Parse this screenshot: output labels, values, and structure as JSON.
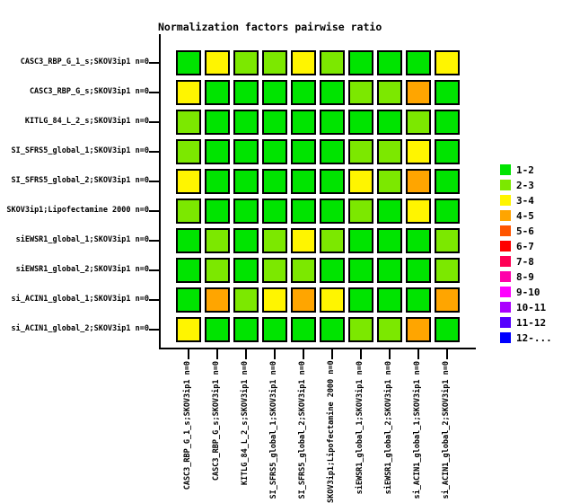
{
  "title": "Normalization factors pairwise ratio",
  "chart_data": {
    "type": "heatmap",
    "title": "Normalization factors pairwise ratio",
    "legend_position": "right",
    "grid": false,
    "row_labels": [
      "CASC3_RBP_G_1_s;SKOV3ip1 n=0",
      "CASC3_RBP_G_s;SKOV3ip1 n=0",
      "KITLG_84_L_2_s;SKOV3ip1 n=0",
      "SI_SFRS5_global_1;SKOV3ip1 n=0",
      "SI_SFRS5_global_2;SKOV3ip1 n=0",
      "SKOV3ip1;Lipofectamine 2000 n=0",
      "siEWSR1_global_1;SKOV3ip1 n=0",
      "siEWSR1_global_2;SKOV3ip1 n=0",
      "si_ACIN1_global_1;SKOV3ip1 n=0",
      "si_ACIN1_global_2;SKOV3ip1 n=0"
    ],
    "col_labels": [
      "CASC3_RBP_G_1_s;SKOV3ip1 n=0",
      "CASC3_RBP_G_s;SKOV3ip1 n=0",
      "KITLG_84_L_2_s;SKOV3ip1 n=0",
      "SI_SFRS5_global_1;SKOV3ip1 n=0",
      "SI_SFRS5_global_2;SKOV3ip1 n=0",
      "SKOV3ip1;Lipofectamine 2000 n=0",
      "siEWSR1_global_1;SKOV3ip1 n=0",
      "siEWSR1_global_2;SKOV3ip1 n=0",
      "si_ACIN1_global_1;SKOV3ip1 n=0",
      "si_ACIN1_global_2;SKOV3ip1 n=0"
    ],
    "cell_bins": [
      [
        "1-2",
        "3-4",
        "2-3",
        "2-3",
        "3-4",
        "2-3",
        "1-2",
        "1-2",
        "1-2",
        "3-4"
      ],
      [
        "3-4",
        "1-2",
        "1-2",
        "1-2",
        "1-2",
        "1-2",
        "2-3",
        "2-3",
        "4-5",
        "1-2"
      ],
      [
        "2-3",
        "1-2",
        "1-2",
        "1-2",
        "1-2",
        "1-2",
        "1-2",
        "1-2",
        "2-3",
        "1-2"
      ],
      [
        "2-3",
        "1-2",
        "1-2",
        "1-2",
        "1-2",
        "1-2",
        "2-3",
        "2-3",
        "3-4",
        "1-2"
      ],
      [
        "3-4",
        "1-2",
        "1-2",
        "1-2",
        "1-2",
        "1-2",
        "3-4",
        "2-3",
        "4-5",
        "1-2"
      ],
      [
        "2-3",
        "1-2",
        "1-2",
        "1-2",
        "1-2",
        "1-2",
        "2-3",
        "1-2",
        "3-4",
        "1-2"
      ],
      [
        "1-2",
        "2-3",
        "1-2",
        "2-3",
        "3-4",
        "2-3",
        "1-2",
        "1-2",
        "1-2",
        "2-3"
      ],
      [
        "1-2",
        "2-3",
        "1-2",
        "2-3",
        "2-3",
        "1-2",
        "1-2",
        "1-2",
        "1-2",
        "2-3"
      ],
      [
        "1-2",
        "4-5",
        "2-3",
        "3-4",
        "4-5",
        "3-4",
        "1-2",
        "1-2",
        "1-2",
        "4-5"
      ],
      [
        "3-4",
        "1-2",
        "1-2",
        "1-2",
        "1-2",
        "1-2",
        "2-3",
        "2-3",
        "4-5",
        "1-2"
      ]
    ],
    "legend": [
      {
        "label": "1-2",
        "color": "#00E400"
      },
      {
        "label": "2-3",
        "color": "#7CE800"
      },
      {
        "label": "3-4",
        "color": "#FFF500"
      },
      {
        "label": "4-5",
        "color": "#FFA500"
      },
      {
        "label": "5-6",
        "color": "#FF5500"
      },
      {
        "label": "6-7",
        "color": "#FF0000"
      },
      {
        "label": "7-8",
        "color": "#FF0055"
      },
      {
        "label": "8-9",
        "color": "#FF00AA"
      },
      {
        "label": "9-10",
        "color": "#FF00FF"
      },
      {
        "label": "10-11",
        "color": "#AA00FF"
      },
      {
        "label": "11-12",
        "color": "#5500FF"
      },
      {
        "label": "12-...",
        "color": "#0000FF"
      }
    ]
  },
  "colors": {
    "background": "#FFFFFF",
    "axis": "#000000",
    "cell_border": "#000000",
    "text": "#000000"
  }
}
